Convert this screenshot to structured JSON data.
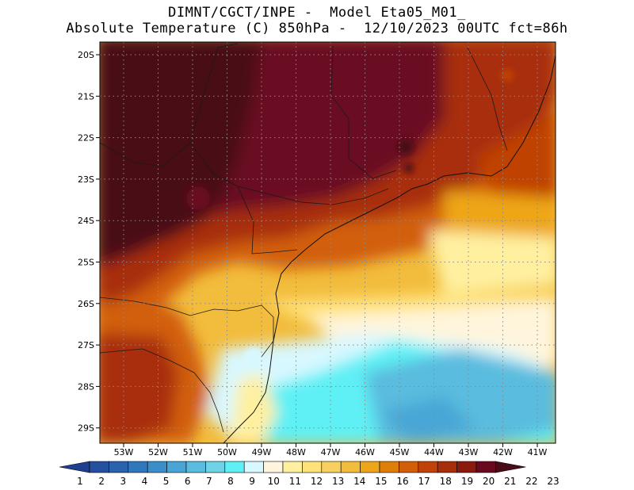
{
  "title": {
    "line1": "DIMNT/CGCT/INPE -  Model Eta05_M01_",
    "line2": "Absolute Temperature (C) 850hPa -  12/10/2023 00UTC fct=86h"
  },
  "map": {
    "lat_labels": [
      "20S",
      "21S",
      "22S",
      "23S",
      "24S",
      "25S",
      "26S",
      "27S",
      "28S",
      "29S"
    ],
    "lon_labels": [
      "53W",
      "52W",
      "51W",
      "50W",
      "49W",
      "48W",
      "47W",
      "46W",
      "45W",
      "44W",
      "43W",
      "42W",
      "41W"
    ]
  },
  "colorbar": {
    "labels": [
      "1",
      "2",
      "3",
      "4",
      "5",
      "6",
      "7",
      "8",
      "9",
      "10",
      "11",
      "12",
      "13",
      "14",
      "15",
      "16",
      "17",
      "18",
      "19",
      "20",
      "21",
      "22",
      "23"
    ],
    "colors": [
      "#1f3f8f",
      "#24509f",
      "#2a62ae",
      "#2f78bd",
      "#3a8fcb",
      "#48a6d6",
      "#5abcde",
      "#6fd2e6",
      "#5ef0f5",
      "#d8f8ff",
      "#fff5dc",
      "#fff0a0",
      "#ffe27a",
      "#f8d060",
      "#f2bc3c",
      "#eea618",
      "#e07e0a",
      "#d25f08",
      "#c04206",
      "#a82e0a",
      "#8a1a0e",
      "#6a0820",
      "#4a0c18"
    ]
  }
}
